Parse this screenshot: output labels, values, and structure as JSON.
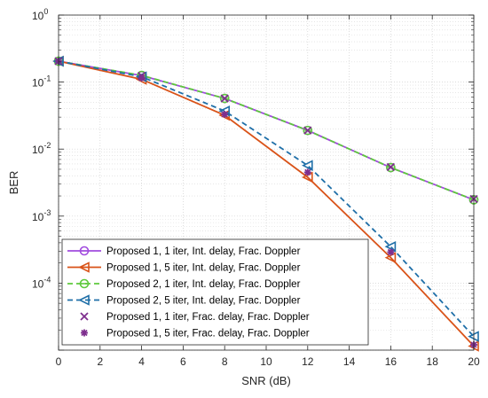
{
  "chart_data": {
    "type": "line",
    "title": "",
    "xlabel": "SNR (dB)",
    "ylabel": "BER",
    "xlim": [
      0,
      20
    ],
    "ylim": [
      1e-05,
      1
    ],
    "yscale": "log",
    "grid": true,
    "legend_position": "bottom-left",
    "x_ticks": [
      0,
      2,
      4,
      6,
      8,
      10,
      12,
      14,
      16,
      18,
      20
    ],
    "y_ticks": [
      {
        "value": 1e-05,
        "base": "",
        "exp": ""
      },
      {
        "value": 0.0001,
        "base": "10",
        "exp": "-4"
      },
      {
        "value": 0.001,
        "base": "10",
        "exp": "-3"
      },
      {
        "value": 0.01,
        "base": "10",
        "exp": "-2"
      },
      {
        "value": 0.1,
        "base": "10",
        "exp": "-1"
      },
      {
        "value": 1,
        "base": "10",
        "exp": "0"
      }
    ],
    "series": [
      {
        "name": "Proposed 1, 1 iter, Int. delay, Frac. Doppler",
        "color": "#a14bde",
        "line": "solid",
        "marker": "circle",
        "x": [
          0,
          4,
          8,
          12,
          16,
          20
        ],
        "values": [
          0.205,
          0.125,
          0.057,
          0.019,
          0.0053,
          0.00175
        ]
      },
      {
        "name": "Proposed 1, 5 iter, Int. delay, Frac. Doppler",
        "color": "#d95319",
        "line": "solid",
        "marker": "triangle-left",
        "x": [
          0,
          4,
          8,
          12,
          16,
          20
        ],
        "values": [
          0.205,
          0.11,
          0.032,
          0.0038,
          0.00024,
          1.15e-05
        ]
      },
      {
        "name": "Proposed 2, 1 iter, Int. delay, Frac. Doppler",
        "color": "#5ec93c",
        "line": "dashed",
        "marker": "circle-dash",
        "x": [
          0,
          4,
          8,
          12,
          16,
          20
        ],
        "values": [
          0.205,
          0.126,
          0.057,
          0.019,
          0.0053,
          0.00175
        ]
      },
      {
        "name": "Proposed 2, 5 iter, Int. delay, Frac. Doppler",
        "color": "#1f6fa8",
        "line": "dashed",
        "marker": "triangle-left",
        "x": [
          0,
          4,
          8,
          12,
          16,
          20
        ],
        "values": [
          0.205,
          0.12,
          0.037,
          0.0057,
          0.00035,
          1.6e-05
        ]
      },
      {
        "name": "Proposed 1, 1 iter, Frac. delay, Frac. Doppler",
        "color": "#7e2f8e",
        "line": "none",
        "marker": "x",
        "x": [
          0,
          4,
          8,
          12,
          16,
          20
        ],
        "values": [
          0.205,
          0.124,
          0.057,
          0.019,
          0.0054,
          0.0018
        ]
      },
      {
        "name": "Proposed 1, 5 iter, Frac. delay, Frac. Doppler",
        "color": "#7e2f8e",
        "line": "none",
        "marker": "asterisk",
        "x": [
          0,
          4,
          8,
          12,
          16,
          20
        ],
        "values": [
          0.205,
          0.115,
          0.033,
          0.0045,
          0.00029,
          1.2e-05
        ]
      }
    ]
  }
}
